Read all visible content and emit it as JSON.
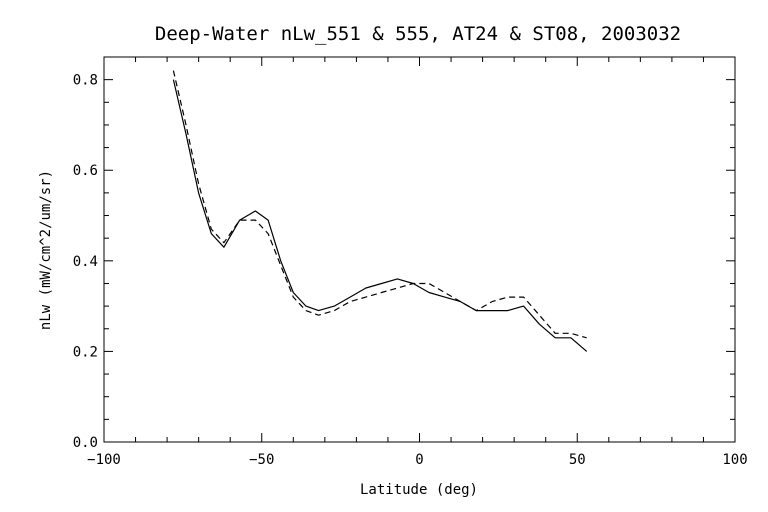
{
  "chart_data": {
    "type": "line",
    "title": "Deep-Water nLw_551 & 555, AT24 & ST08, 2003032",
    "xlabel": "Latitude (deg)",
    "ylabel": "nLw (mW/cm^2/um/sr)",
    "xlim": [
      -100,
      100
    ],
    "ylim": [
      0.0,
      0.85
    ],
    "xticks": [
      -100,
      -50,
      0,
      50,
      100
    ],
    "xtick_labels": [
      "−100",
      "−50",
      "0",
      "50",
      "100"
    ],
    "yticks": [
      0.0,
      0.2,
      0.4,
      0.6,
      0.8
    ],
    "ytick_labels": [
      "0.0",
      "0.2",
      "0.4",
      "0.6",
      "0.8"
    ],
    "series": [
      {
        "name": "solid",
        "style": "solid",
        "x": [
          -78,
          -74,
          -70,
          -66,
          -62,
          -57,
          -52,
          -48,
          -44,
          -40,
          -36,
          -32,
          -27,
          -22,
          -17,
          -12,
          -7,
          -2,
          3,
          8,
          13,
          18,
          23,
          28,
          33,
          38,
          43,
          48,
          53
        ],
        "y": [
          0.8,
          0.68,
          0.55,
          0.46,
          0.43,
          0.49,
          0.51,
          0.49,
          0.4,
          0.33,
          0.3,
          0.29,
          0.3,
          0.32,
          0.34,
          0.35,
          0.36,
          0.35,
          0.33,
          0.32,
          0.31,
          0.29,
          0.29,
          0.29,
          0.3,
          0.26,
          0.23,
          0.23,
          0.2
        ]
      },
      {
        "name": "dashed",
        "style": "dashed",
        "x": [
          -78,
          -74,
          -70,
          -66,
          -62,
          -57,
          -52,
          -48,
          -44,
          -40,
          -36,
          -32,
          -27,
          -22,
          -17,
          -12,
          -7,
          -2,
          3,
          8,
          13,
          18,
          23,
          28,
          33,
          38,
          43,
          48,
          53
        ],
        "y": [
          0.82,
          0.7,
          0.57,
          0.47,
          0.44,
          0.49,
          0.49,
          0.46,
          0.39,
          0.32,
          0.29,
          0.28,
          0.29,
          0.31,
          0.32,
          0.33,
          0.34,
          0.35,
          0.35,
          0.33,
          0.31,
          0.29,
          0.31,
          0.32,
          0.32,
          0.28,
          0.24,
          0.24,
          0.23
        ]
      }
    ],
    "grid": false,
    "legend": "none"
  }
}
